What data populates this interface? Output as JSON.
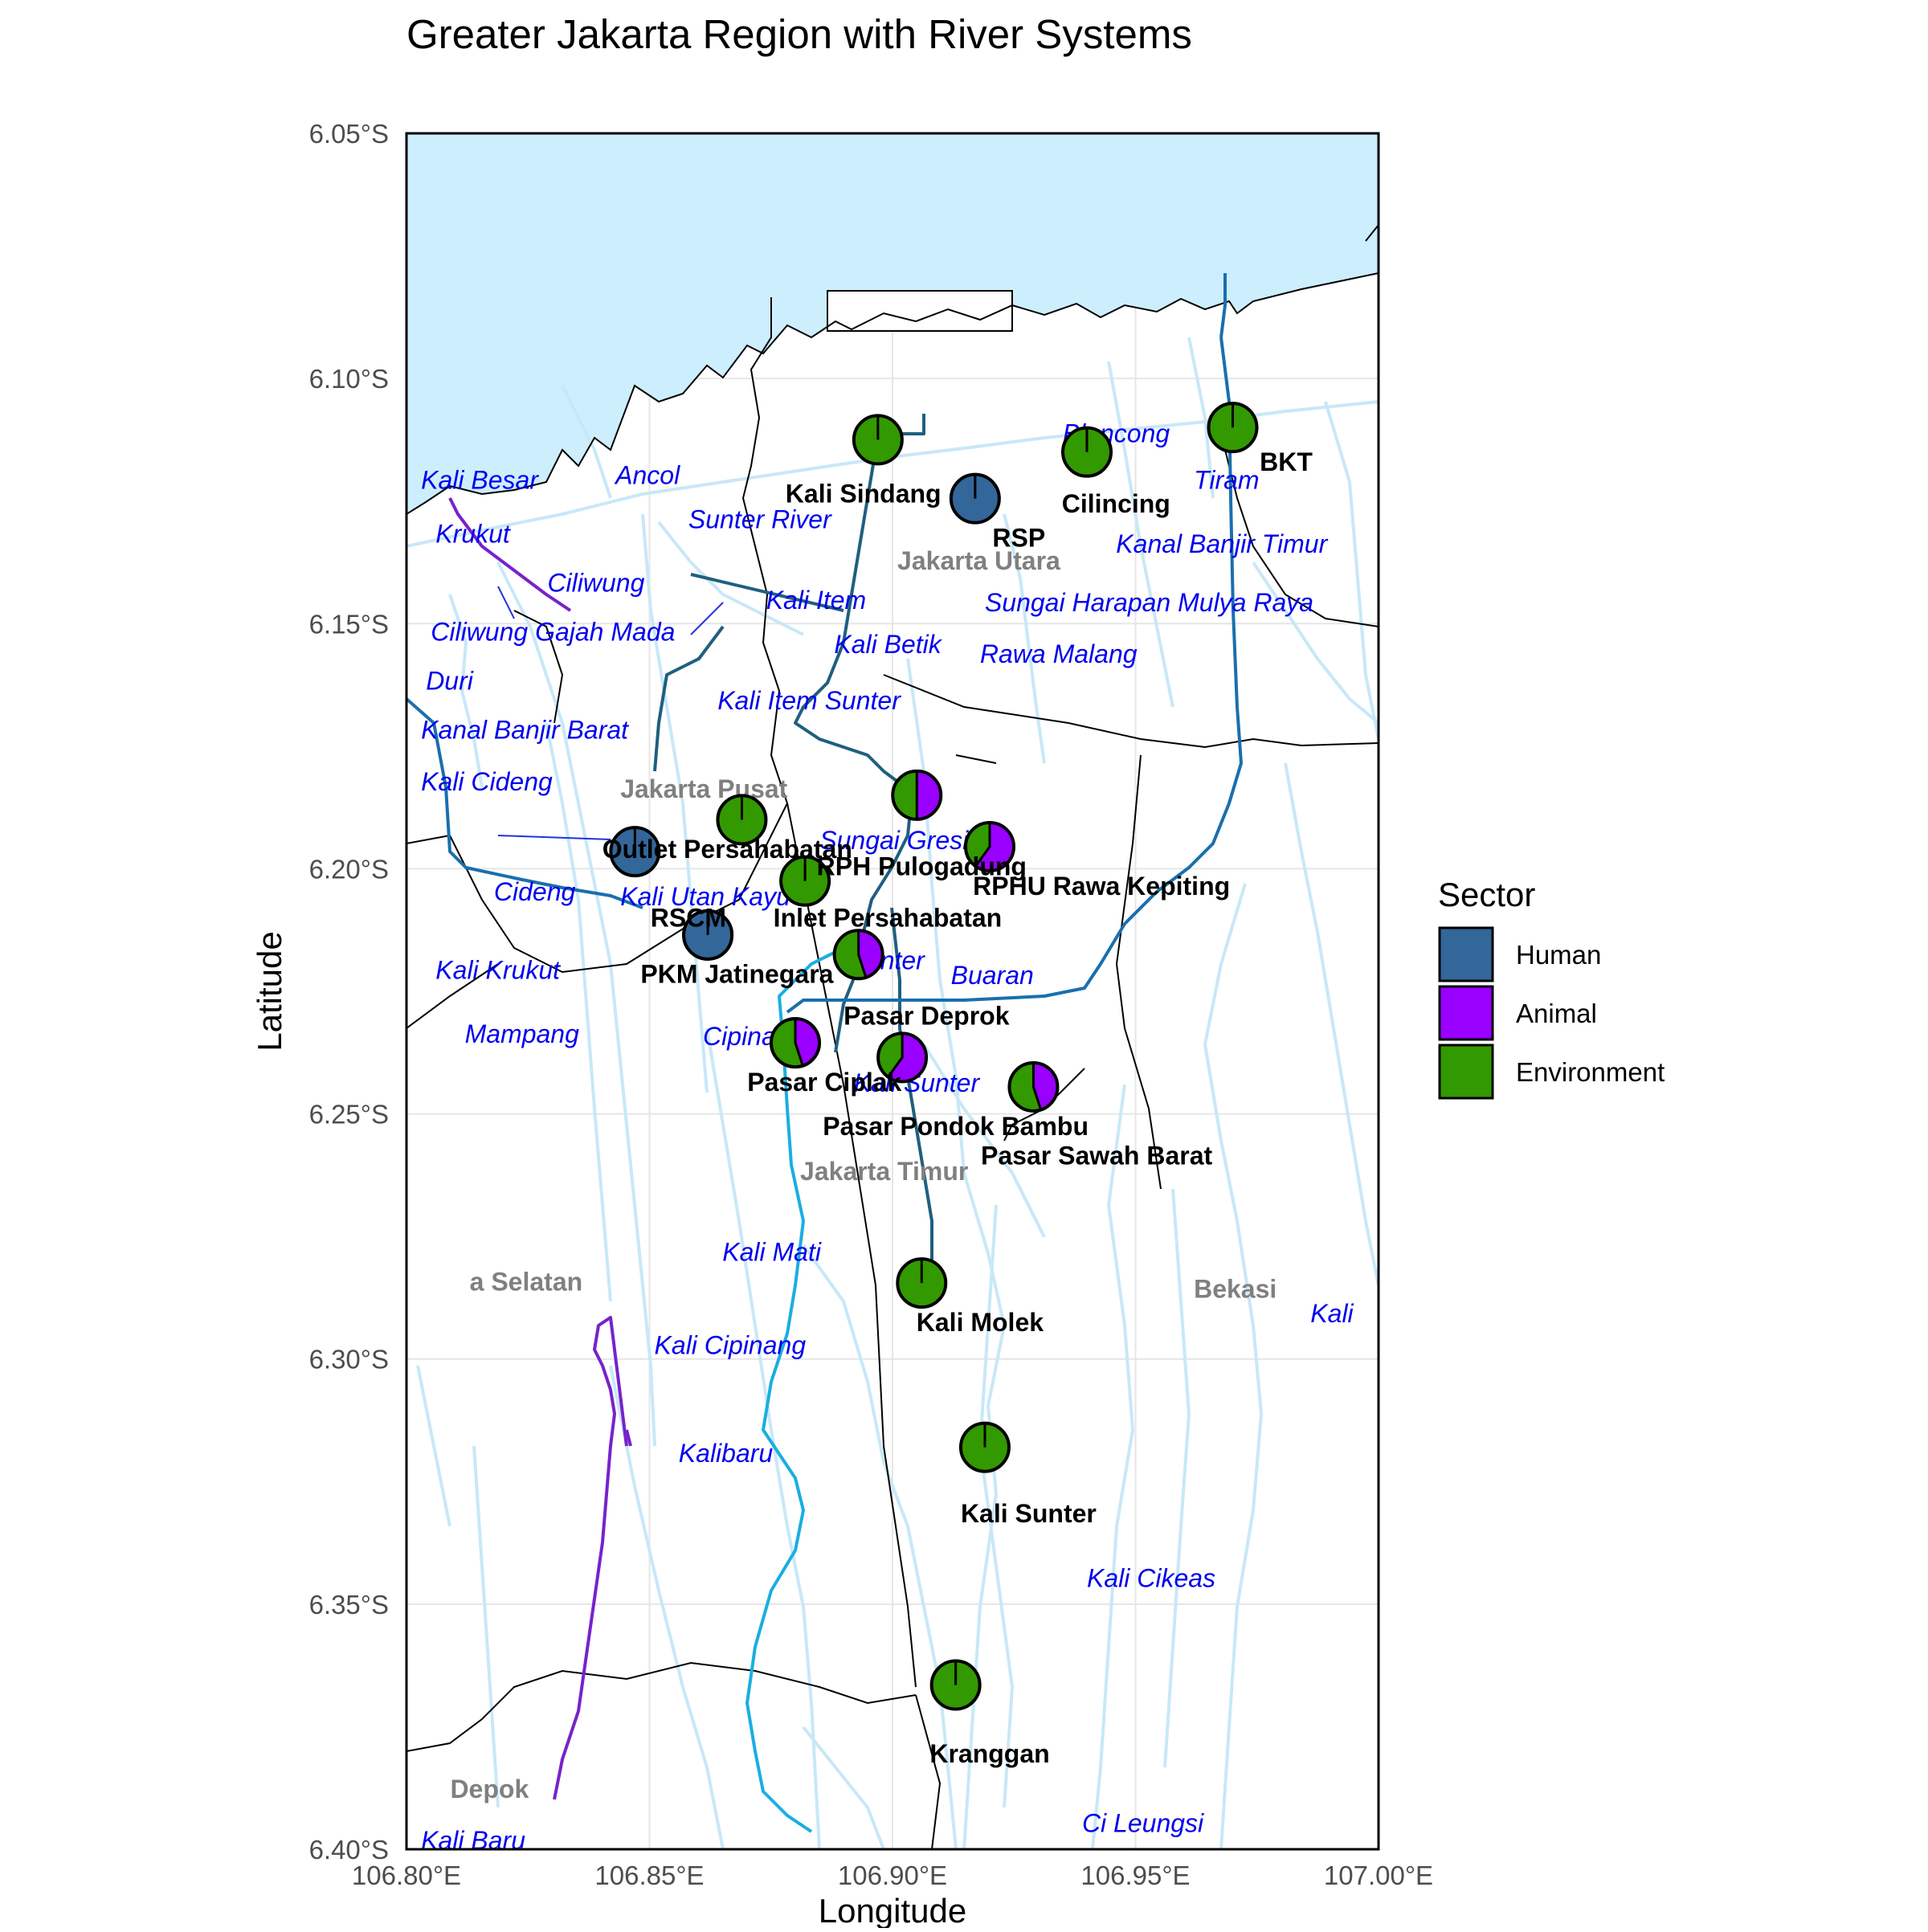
{
  "title": "Greater Jakarta Region with River Systems",
  "x_axis": {
    "title": "Longitude",
    "range": [
      106.8,
      107.0
    ],
    "ticks": [
      {
        "value": 106.8,
        "label": "106.80°E"
      },
      {
        "value": 106.85,
        "label": "106.85°E"
      },
      {
        "value": 106.9,
        "label": "106.90°E"
      },
      {
        "value": 106.95,
        "label": "106.95°E"
      },
      {
        "value": 107.0,
        "label": "107.00°E"
      }
    ]
  },
  "y_axis": {
    "title": "Latitude",
    "range": [
      -6.4,
      -6.05
    ],
    "ticks": [
      {
        "value": -6.05,
        "label": "6.05°S"
      },
      {
        "value": -6.1,
        "label": "6.10°S"
      },
      {
        "value": -6.15,
        "label": "6.15°S"
      },
      {
        "value": -6.2,
        "label": "6.20°S"
      },
      {
        "value": -6.25,
        "label": "6.25°S"
      },
      {
        "value": -6.3,
        "label": "6.30°S"
      },
      {
        "value": -6.35,
        "label": "6.35°S"
      },
      {
        "value": -6.4,
        "label": "6.40°S"
      }
    ]
  },
  "colors": {
    "sea": "#cdeefd",
    "minor_river": "#c8e8f8",
    "river_dark": "#1f5f7f",
    "river_mid": "#1a6fae",
    "river_bright": "#1aaee0",
    "river_purple": "#7722cc",
    "boundary": "#000000",
    "river_label": "#0000ee",
    "admin_label": "#808080"
  },
  "legend": {
    "title": "Sector",
    "items": [
      {
        "label": "Human",
        "color": "#336699"
      },
      {
        "label": "Animal",
        "color": "#9900ff"
      },
      {
        "label": "Environment",
        "color": "#339900"
      }
    ]
  },
  "river_labels": [
    {
      "text": "Kali Besar",
      "lon": 106.803,
      "lat": -6.1225
    },
    {
      "text": "Ancol",
      "lon": 106.843,
      "lat": -6.1215
    },
    {
      "text": "Krukut",
      "lon": 106.806,
      "lat": -6.1335
    },
    {
      "text": "Ciliwung",
      "lon": 106.829,
      "lat": -6.1435
    },
    {
      "text": "Ciliwung Gajah Mada",
      "lon": 106.805,
      "lat": -6.1535
    },
    {
      "text": "Duri",
      "lon": 106.804,
      "lat": -6.1635
    },
    {
      "text": "Kanal Banjir Barat",
      "lon": 106.803,
      "lat": -6.1735
    },
    {
      "text": "Kali Cideng",
      "lon": 106.803,
      "lat": -6.184
    },
    {
      "text": "Sunter River",
      "lon": 106.858,
      "lat": -6.1305
    },
    {
      "text": "Kali Item",
      "lon": 106.874,
      "lat": -6.147
    },
    {
      "text": "Kali Betik",
      "lon": 106.888,
      "lat": -6.156
    },
    {
      "text": "Kali Item Sunter",
      "lon": 106.864,
      "lat": -6.1675
    },
    {
      "text": "Sungai Gresik",
      "lon": 106.885,
      "lat": -6.196
    },
    {
      "text": "Kali Utan Kayu",
      "lon": 106.844,
      "lat": -6.2075
    },
    {
      "text": "Cideng",
      "lon": 106.818,
      "lat": -6.2065
    },
    {
      "text": "Kali Krukut",
      "lon": 106.806,
      "lat": -6.2225
    },
    {
      "text": "Mampang",
      "lon": 106.812,
      "lat": -6.2355
    },
    {
      "text": "Cipinang",
      "lon": 106.861,
      "lat": -6.236
    },
    {
      "text": "Sunter",
      "lon": 106.891,
      "lat": -6.2205
    },
    {
      "text": "Buaran",
      "lon": 106.912,
      "lat": -6.2235
    },
    {
      "text": "Kali Sunter",
      "lon": 106.892,
      "lat": -6.2455
    },
    {
      "text": "Blencong",
      "lon": 106.935,
      "lat": -6.113
    },
    {
      "text": "Tiram",
      "lon": 106.962,
      "lat": -6.1225
    },
    {
      "text": "Kanal Banjir Timur",
      "lon": 106.946,
      "lat": -6.1355
    },
    {
      "text": "Sungai Harapan Mulya Raya",
      "lon": 106.919,
      "lat": -6.1475
    },
    {
      "text": "Rawa Malang",
      "lon": 106.918,
      "lat": -6.158
    },
    {
      "text": "Kali Mati",
      "lon": 106.865,
      "lat": -6.28
    },
    {
      "text": "Kali Cipinang",
      "lon": 106.851,
      "lat": -6.299
    },
    {
      "text": "Kalibaru",
      "lon": 106.856,
      "lat": -6.321
    },
    {
      "text": "Kali Cikeas",
      "lon": 106.94,
      "lat": -6.3465
    },
    {
      "text": "Kali",
      "lon": 106.986,
      "lat": -6.2925
    },
    {
      "text": "Ci Leungsi",
      "lon": 106.939,
      "lat": -6.3965
    },
    {
      "text": "Kali Baru",
      "lon": 106.803,
      "lat": -6.4
    }
  ],
  "admin_labels": [
    {
      "text": "Jakarta Utara",
      "lon": 106.901,
      "lat": -6.139
    },
    {
      "text": "Jakarta Pusat",
      "lon": 106.844,
      "lat": -6.1855
    },
    {
      "text": "Jakarta Timur",
      "lon": 106.881,
      "lat": -6.2635
    },
    {
      "text": "a Selatan",
      "lon": 106.813,
      "lat": -6.286
    },
    {
      "text": "Bekasi",
      "lon": 106.962,
      "lat": -6.2875
    },
    {
      "text": "Depok",
      "lon": 106.809,
      "lat": -6.3895
    }
  ],
  "sites": [
    {
      "name": "Kali Sindang",
      "lon": 106.897,
      "lat": -6.1125,
      "shares": [
        0,
        0,
        1
      ],
      "label_lon": 106.894,
      "label_lat": -6.1235
    },
    {
      "name": "RSP",
      "lon": 106.917,
      "lat": -6.1245,
      "shares": [
        1,
        0,
        0
      ],
      "label_lon": 106.926,
      "label_lat": -6.1325
    },
    {
      "name": "Cilincing",
      "lon": 106.94,
      "lat": -6.115,
      "shares": [
        0,
        0,
        1
      ],
      "label_lon": 106.946,
      "label_lat": -6.1255
    },
    {
      "name": "BKT",
      "lon": 106.97,
      "lat": -6.11,
      "shares": [
        0,
        0,
        1
      ],
      "label_lon": 106.981,
      "label_lat": -6.117
    },
    {
      "name": "Outlet Persahabatan",
      "lon": 106.847,
      "lat": -6.1965,
      "shares": [
        1,
        0,
        0
      ],
      "label_lon": 106.866,
      "label_lat": -6.196
    },
    {
      "name": "Inlet Persahabatan",
      "lon": 106.869,
      "lat": -6.19,
      "shares": [
        0,
        0,
        1
      ],
      "label_lon": 106.899,
      "label_lat": -6.21
    },
    {
      "name": "RPH Pulogadung",
      "lon": 106.882,
      "lat": -6.2025,
      "shares": [
        0,
        0,
        1
      ],
      "label_lon": 106.906,
      "label_lat": -6.1995
    },
    {
      "name": "",
      "lon": 106.905,
      "lat": -6.185,
      "shares": [
        0,
        0.5,
        0.5
      ],
      "label_lon": 106.905,
      "label_lat": -6.185
    },
    {
      "name": "RPHU Rawa Kepiting",
      "lon": 106.92,
      "lat": -6.1955,
      "shares": [
        0,
        0.6,
        0.4
      ],
      "label_lon": 106.943,
      "label_lat": -6.2035
    },
    {
      "name": "RSCM",
      "lon": 106.862,
      "lat": -6.2135,
      "shares": [
        1,
        0,
        0
      ],
      "label_lon": 106.858,
      "label_lat": -6.21
    },
    {
      "name": "PKM Jatinegara",
      "lon": 106.862,
      "lat": -6.2135,
      "shares": [
        1,
        0,
        0
      ],
      "label_lon": 106.868,
      "label_lat": -6.2215
    },
    {
      "name": "",
      "lon": 106.893,
      "lat": -6.2175,
      "shares": [
        0,
        0.45,
        0.55
      ],
      "label_lon": 106.893,
      "label_lat": -6.2175
    },
    {
      "name": "Pasar Deprok",
      "lon": 106.88,
      "lat": -6.2355,
      "shares": [
        0,
        0.45,
        0.55
      ],
      "label_lon": 106.907,
      "label_lat": -6.23
    },
    {
      "name": "Pasar Ciplak",
      "lon": 106.88,
      "lat": -6.2355,
      "shares": [
        0,
        0.45,
        0.55
      ],
      "label_lon": 106.886,
      "label_lat": -6.2435
    },
    {
      "name": "Pasar Pondok Bambu",
      "lon": 106.902,
      "lat": -6.2385,
      "shares": [
        0,
        0.6,
        0.4
      ],
      "label_lon": 106.913,
      "label_lat": -6.2525
    },
    {
      "name": "Pasar Sawah Barat",
      "lon": 106.929,
      "lat": -6.2445,
      "shares": [
        0,
        0.45,
        0.55
      ],
      "label_lon": 106.942,
      "label_lat": -6.2585
    },
    {
      "name": "Kali Molek",
      "lon": 106.906,
      "lat": -6.2845,
      "shares": [
        0,
        0,
        1
      ],
      "label_lon": 106.918,
      "label_lat": -6.2925
    },
    {
      "name": "Kali Sunter",
      "lon": 106.919,
      "lat": -6.318,
      "shares": [
        0,
        0,
        1
      ],
      "label_lon": 106.928,
      "label_lat": -6.3315
    },
    {
      "name": "Kranggan",
      "lon": 106.913,
      "lat": -6.3665,
      "shares": [
        0,
        0,
        1
      ],
      "label_lon": 106.92,
      "label_lat": -6.3805
    }
  ]
}
